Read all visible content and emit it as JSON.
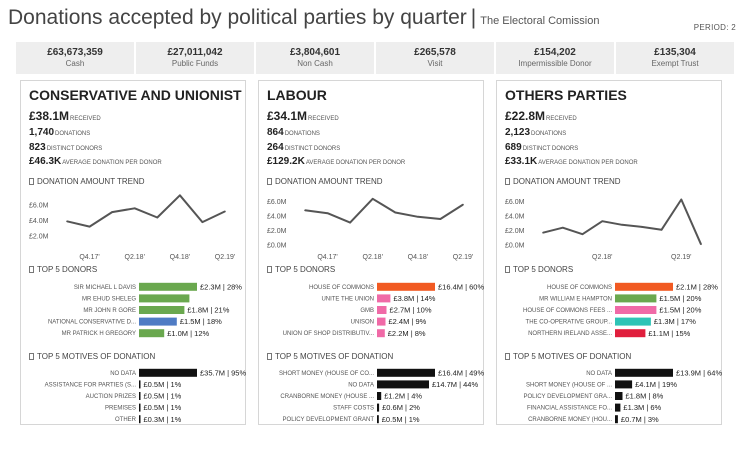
{
  "header": {
    "title": "Donations accepted by political parties by quarter",
    "subtitle": "The Electoral Comission",
    "period_label": "PERIOD: 2"
  },
  "kpis": [
    {
      "value": "£63,673,359",
      "label": "Cash"
    },
    {
      "value": "£27,011,042",
      "label": "Public Funds"
    },
    {
      "value": "£3,804,601",
      "label": "Non Cash"
    },
    {
      "value": "£265,578",
      "label": "Visit"
    },
    {
      "value": "£154,202",
      "label": "Impermissible Donor"
    },
    {
      "value": "£135,304",
      "label": "Exempt Trust"
    }
  ],
  "colors": {
    "line": "#555555",
    "black": "#111111",
    "green": "#6aa84f",
    "blue": "#4f7cc4",
    "orange": "#f15a22",
    "pink": "#f06aa7",
    "teal": "#2ec4b6",
    "red": "#e01f3d"
  },
  "panels": [
    {
      "title": "CONSERVATIVE AND UNIONIST",
      "received_value": "£38.1M",
      "received_label": "RECEIVED",
      "donations_value": "1,740",
      "donations_label": "DONATIONS",
      "donors_value": "823",
      "donors_label": "DISTINCT DONORS",
      "avg_value": "£46.3K",
      "avg_label": "AVERAGE DONATION PER DONOR",
      "trend_title": "DONATION AMOUNT TREND",
      "top_donors_title": "TOP 5 DONORS",
      "motives_title": "TOP 5 MOTIVES OF DONATION"
    },
    {
      "title": "LABOUR",
      "received_value": "£34.1M",
      "received_label": "RECEIVED",
      "donations_value": "864",
      "donations_label": "DONATIONS",
      "donors_value": "264",
      "donors_label": "DISTINCT DONORS",
      "avg_value": "£129.2K",
      "avg_label": "AVERAGE DONATION PER DONOR",
      "trend_title": "DONATION AMOUNT TREND",
      "top_donors_title": "TOP 5 DONORS",
      "motives_title": "TOP 5 MOTIVES OF DONATION"
    },
    {
      "title": "OTHERS PARTIES",
      "received_value": "£22.8M",
      "received_label": "RECEIVED",
      "donations_value": "2,123",
      "donations_label": "DONATIONS",
      "donors_value": "689",
      "donors_label": "DISTINCT DONORS",
      "avg_value": "£33.1K",
      "avg_label": "AVERAGE DONATION PER DONOR",
      "trend_title": "DONATION AMOUNT TREND",
      "top_donors_title": "TOP 5 DONORS",
      "motives_title": "TOP 5 MOTIVES OF DONATION"
    }
  ],
  "chart_data": [
    {
      "type": "line",
      "panel": 0,
      "yticks": [
        "£6.0M",
        "£4.0M",
        "£2.0M"
      ],
      "ytick_values": [
        6,
        4,
        2
      ],
      "ylim": [
        0.8,
        7.6
      ],
      "xticks": [
        "Q4.17'",
        "Q2.18'",
        "Q4.18'",
        "Q2.19'"
      ],
      "xtick_positions": [
        2,
        4,
        6,
        8
      ],
      "values": [
        3.9,
        3.2,
        5.1,
        5.6,
        4.4,
        7.3,
        3.8,
        5.2
      ],
      "units": "£M"
    },
    {
      "type": "line",
      "panel": 1,
      "yticks": [
        "£6.0M",
        "£4.0M",
        "£2.0M",
        "£0.0M"
      ],
      "ytick_values": [
        6,
        4,
        2,
        0
      ],
      "ylim": [
        0,
        7.2
      ],
      "xticks": [
        "Q4.17'",
        "Q2.18'",
        "Q4.18'",
        "Q2.19'"
      ],
      "xtick_positions": [
        2,
        4,
        6,
        8
      ],
      "values": [
        4.8,
        4.4,
        3.1,
        6.4,
        4.5,
        3.9,
        3.6,
        5.6
      ],
      "units": "£M"
    },
    {
      "type": "line",
      "panel": 2,
      "yticks": [
        "£6.0M",
        "£4.0M",
        "£2.0M",
        "£0.0M"
      ],
      "ytick_values": [
        6,
        4,
        2,
        0
      ],
      "ylim": [
        0,
        7.2
      ],
      "xticks": [
        "Q2.18'",
        "Q2.19'"
      ],
      "xtick_positions": [
        4,
        8
      ],
      "values": [
        1.7,
        2.4,
        1.5,
        3.3,
        2.8,
        2.5,
        2.1,
        6.3,
        0.1
      ],
      "units": "£M"
    },
    {
      "type": "bar",
      "orientation": "horizontal",
      "panel": 0,
      "section": "top_donors",
      "xmax": 2.3,
      "categories": [
        "SIR MICHAEL L DAVIS",
        "MR EHUD SHELEG",
        "MR JOHN R GORE",
        "NATIONAL CONSERVATIVE D...",
        "MR PATRICK H GREGORY"
      ],
      "values": [
        2.3,
        2.0,
        1.8,
        1.5,
        1.0
      ],
      "labels": [
        "£2.3M | 28%",
        "",
        "£1.8M | 21%",
        "£1.5M | 18%",
        "£1.0M | 12%"
      ],
      "colors": [
        "green",
        "green",
        "green",
        "blue",
        "green"
      ]
    },
    {
      "type": "bar",
      "orientation": "horizontal",
      "panel": 0,
      "section": "motives",
      "xmax": 35.7,
      "categories": [
        "NO DATA",
        "ASSISTANCE FOR PARTIES (S...",
        "AUCTION PRIZES",
        "PREMISES",
        "OTHER"
      ],
      "values": [
        35.7,
        0.5,
        0.5,
        0.5,
        0.3
      ],
      "labels": [
        "£35.7M | 95%",
        "£0.5M | 1%",
        "£0.5M | 1%",
        "£0.5M | 1%",
        "£0.3M | 1%"
      ],
      "colors": [
        "black",
        "black",
        "black",
        "black",
        "black"
      ]
    },
    {
      "type": "bar",
      "orientation": "horizontal",
      "panel": 1,
      "section": "top_donors",
      "xmax": 16.4,
      "categories": [
        "HOUSE OF COMMONS",
        "UNITE THE UNION",
        "GMB",
        "UNISON",
        "UNION OF SHOP DISTRIBUTIV..."
      ],
      "values": [
        16.4,
        3.8,
        2.7,
        2.4,
        2.2
      ],
      "labels": [
        "£16.4M | 60%",
        "£3.8M | 14%",
        "£2.7M | 10%",
        "£2.4M | 9%",
        "£2.2M | 8%"
      ],
      "colors": [
        "orange",
        "pink",
        "pink",
        "pink",
        "pink"
      ]
    },
    {
      "type": "bar",
      "orientation": "horizontal",
      "panel": 1,
      "section": "motives",
      "xmax": 16.4,
      "categories": [
        "SHORT MONEY (HOUSE OF CO...",
        "NO DATA",
        "CRANBORNE MONEY (HOUSE ...",
        "STAFF COSTS",
        "POLICY DEVELOPMENT GRANT"
      ],
      "values": [
        16.4,
        14.7,
        1.2,
        0.6,
        0.5
      ],
      "labels": [
        "£16.4M | 49%",
        "£14.7M | 44%",
        "£1.2M | 4%",
        "£0.6M | 2%",
        "£0.5M | 1%"
      ],
      "colors": [
        "black",
        "black",
        "black",
        "black",
        "black"
      ]
    },
    {
      "type": "bar",
      "orientation": "horizontal",
      "panel": 2,
      "section": "top_donors",
      "xmax": 2.1,
      "categories": [
        "HOUSE OF COMMONS",
        "MR WILLIAM E HAMPTON",
        "HOUSE OF COMMONS FEES ...",
        "THE CO-OPERATIVE GROUP...",
        "NORTHERN IRELAND ASSE..."
      ],
      "values": [
        2.1,
        1.5,
        1.5,
        1.3,
        1.1
      ],
      "labels": [
        "£2.1M | 28%",
        "£1.5M | 20%",
        "£1.5M | 20%",
        "£1.3M | 17%",
        "£1.1M | 15%"
      ],
      "colors": [
        "orange",
        "green",
        "pink",
        "teal",
        "red"
      ]
    },
    {
      "type": "bar",
      "orientation": "horizontal",
      "panel": 2,
      "section": "motives",
      "xmax": 13.9,
      "categories": [
        "NO DATA",
        "SHORT MONEY (HOUSE OF ...",
        "POLICY DEVELOPMENT GRA...",
        "FINANCIAL ASSISTANCE FO...",
        "CRANBORNE MONEY (HOU..."
      ],
      "values": [
        13.9,
        4.1,
        1.8,
        1.3,
        0.7
      ],
      "labels": [
        "£13.9M | 64%",
        "£4.1M | 19%",
        "£1.8M | 8%",
        "£1.3M | 6%",
        "£0.7M | 3%"
      ],
      "colors": [
        "black",
        "black",
        "black",
        "black",
        "black"
      ]
    }
  ]
}
